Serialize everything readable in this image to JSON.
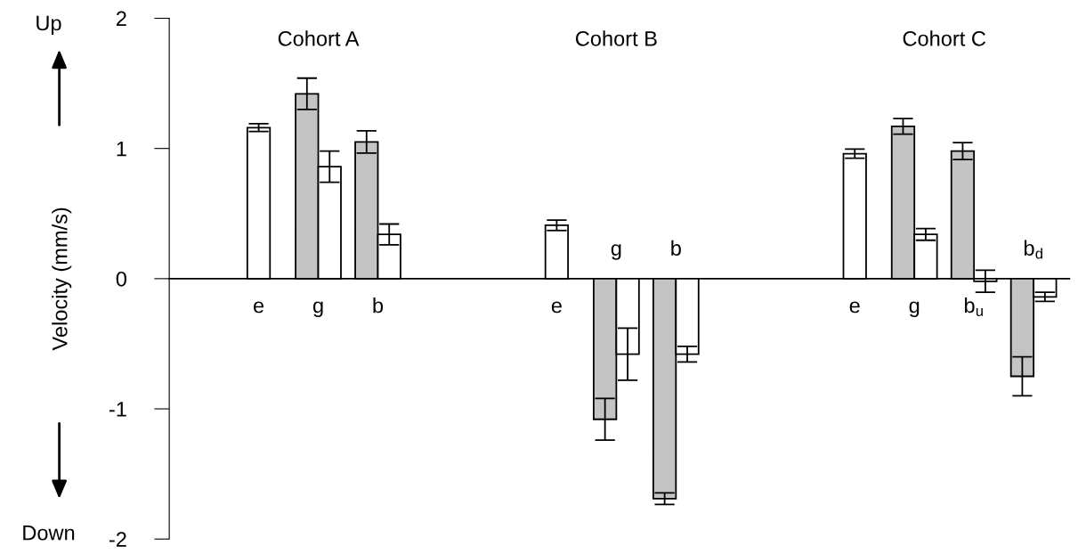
{
  "chart_data": {
    "type": "bar",
    "ylabel": "Velocity (mm/s)",
    "annotations": [
      "Up",
      "Cohort A",
      "Cohort B",
      "Cohort C",
      "Down"
    ],
    "categories": [
      "e",
      "g",
      "b",
      null,
      null,
      "e",
      "g",
      "b",
      null,
      null,
      "e",
      "g",
      "b$_{u}$",
      "b$_{d}$"
    ],
    "series": [
      {
        "color": "#c4c4c4",
        "values": [
          null,
          1.42,
          1.05,
          null,
          null,
          null,
          -1.08,
          -1.69,
          null,
          null,
          null,
          1.17,
          0.98,
          -0.75
        ],
        "errors": [
          null,
          0.12,
          0.085,
          null,
          null,
          null,
          0.16,
          0.045,
          null,
          null,
          null,
          0.06,
          0.065,
          0.15
        ]
      },
      {
        "color": "#ffffff",
        "values": [
          1.16,
          0.86,
          0.34,
          null,
          null,
          0.41,
          -0.58,
          -0.58,
          null,
          null,
          0.96,
          0.34,
          -0.02,
          -0.14
        ],
        "errors": [
          0.03,
          0.12,
          0.08,
          null,
          null,
          0.04,
          0.2,
          0.06,
          null,
          null,
          0.035,
          0.045,
          0.085,
          0.035
        ]
      }
    ],
    "ylim": [
      -2,
      2
    ],
    "yticks": [
      -2,
      -1,
      0,
      1,
      2
    ],
    "grid": false,
    "legend": false
  }
}
